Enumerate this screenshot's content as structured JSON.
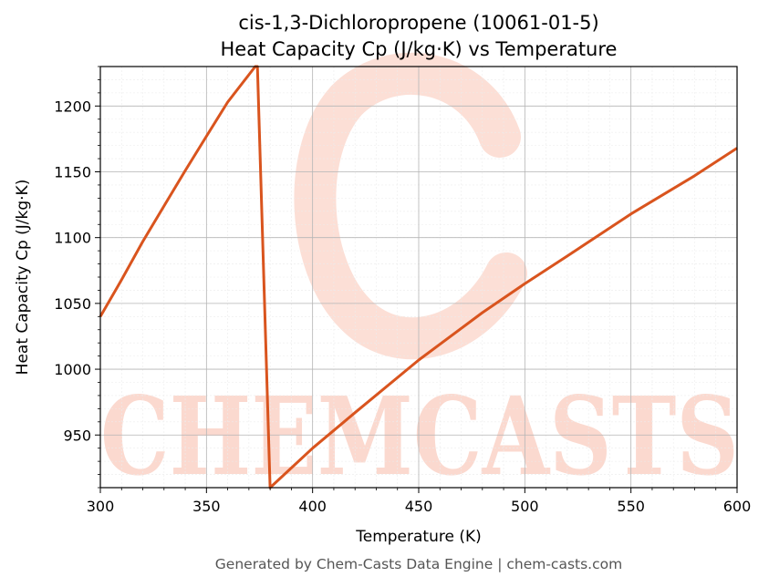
{
  "chart_data": {
    "type": "line",
    "title": [
      "cis-1,3-Dichloropropene (10061-01-5)",
      "Heat Capacity Cp (J/kg·K) vs Temperature"
    ],
    "xlabel": "Temperature (K)",
    "ylabel": "Heat Capacity Cp (J/kg·K)",
    "xlim": [
      300,
      600
    ],
    "ylim": [
      910,
      1230
    ],
    "x_ticks": [
      300,
      350,
      400,
      450,
      500,
      550,
      600
    ],
    "y_ticks": [
      950,
      1000,
      1050,
      1100,
      1150,
      1200
    ],
    "grid": true,
    "legend": "none",
    "series": [
      {
        "color": "#d9541e",
        "points": [
          [
            300,
            1040
          ],
          [
            310,
            1068
          ],
          [
            320,
            1097
          ],
          [
            330,
            1124
          ],
          [
            340,
            1151
          ],
          [
            350,
            1177
          ],
          [
            360,
            1203
          ],
          [
            373,
            1230
          ],
          [
            374,
            1230
          ],
          [
            380,
            910
          ],
          [
            400,
            940
          ],
          [
            420,
            967
          ],
          [
            450,
            1007
          ],
          [
            480,
            1043
          ],
          [
            500,
            1065
          ],
          [
            520,
            1086
          ],
          [
            550,
            1118
          ],
          [
            580,
            1147
          ],
          [
            600,
            1168
          ]
        ]
      }
    ]
  },
  "watermark": {
    "text": "CHEMCASTS",
    "color": "#fbd9cf"
  },
  "footer": "Generated by Chem-Casts Data Engine | chem-casts.com"
}
